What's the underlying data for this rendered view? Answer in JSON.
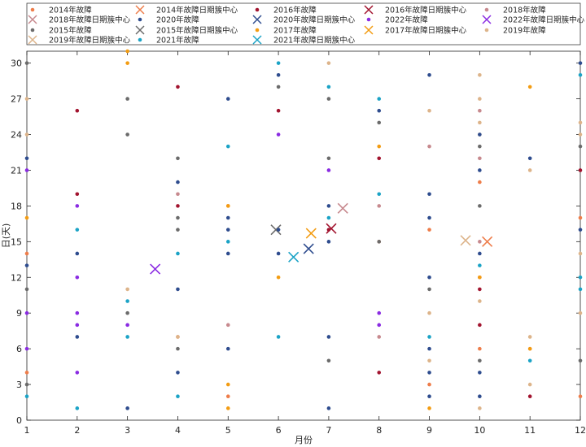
{
  "chart_data": {
    "type": "scatter",
    "xlabel": "月份",
    "ylabel": "日(天)",
    "xlim": [
      1,
      12
    ],
    "ylim": [
      0,
      31
    ],
    "xticks": [
      1,
      2,
      3,
      4,
      5,
      6,
      7,
      8,
      9,
      10,
      11,
      12
    ],
    "yticks": [
      0,
      3,
      6,
      9,
      12,
      15,
      18,
      21,
      24,
      27,
      30
    ],
    "grid": false,
    "legend_position": "top",
    "series": [
      {
        "name": "2014年故障",
        "kind": "points",
        "color": "#EE7D4A",
        "points": [
          [
            1,
            14
          ],
          [
            1,
            4
          ],
          [
            4,
            7
          ],
          [
            5,
            2
          ],
          [
            5,
            18
          ],
          [
            8,
            15
          ],
          [
            9,
            3
          ],
          [
            9,
            16
          ],
          [
            10,
            20
          ],
          [
            10,
            12
          ],
          [
            10,
            6
          ],
          [
            11,
            6
          ],
          [
            12,
            2
          ],
          [
            12,
            17
          ]
        ]
      },
      {
        "name": "2014年故障日期簇中心",
        "kind": "center",
        "color": "#EE7D4A",
        "points": [
          [
            10.15,
            15
          ]
        ]
      },
      {
        "name": "2015年故障",
        "kind": "points",
        "color": "#6B6B6B",
        "points": [
          [
            1,
            30
          ],
          [
            1,
            11
          ],
          [
            1,
            3
          ],
          [
            3,
            27
          ],
          [
            3,
            24
          ],
          [
            3,
            9
          ],
          [
            4,
            22
          ],
          [
            4,
            17
          ],
          [
            4,
            16
          ],
          [
            4,
            6
          ],
          [
            6,
            28
          ],
          [
            7,
            27
          ],
          [
            7,
            22
          ],
          [
            7,
            5
          ],
          [
            8,
            25
          ],
          [
            8,
            15
          ],
          [
            9,
            11
          ],
          [
            10,
            23
          ],
          [
            10,
            18
          ],
          [
            10,
            5
          ],
          [
            12,
            23
          ],
          [
            12,
            5
          ]
        ]
      },
      {
        "name": "2015年故障日期簇中心",
        "kind": "center",
        "color": "#6B6B6B",
        "points": [
          [
            5.95,
            16
          ]
        ]
      },
      {
        "name": "2016年故障",
        "kind": "points",
        "color": "#A2142F",
        "points": [
          [
            2,
            26
          ],
          [
            2,
            19
          ],
          [
            4,
            28
          ],
          [
            4,
            18
          ],
          [
            6,
            26
          ],
          [
            7,
            16
          ],
          [
            8,
            22
          ],
          [
            8,
            4
          ],
          [
            10,
            11
          ],
          [
            10,
            8
          ],
          [
            11,
            2
          ],
          [
            12,
            21
          ]
        ]
      },
      {
        "name": "2016年故障日期簇中心",
        "kind": "center",
        "color": "#A2142F",
        "points": [
          [
            7.05,
            16.1
          ]
        ]
      },
      {
        "name": "2017年故障",
        "kind": "points",
        "color": "#F39C12",
        "points": [
          [
            1,
            17
          ],
          [
            3,
            31
          ],
          [
            3,
            30
          ],
          [
            5,
            18
          ],
          [
            5,
            3
          ],
          [
            5,
            1
          ],
          [
            6,
            12
          ],
          [
            8,
            23
          ],
          [
            9,
            1
          ],
          [
            10,
            12
          ],
          [
            11,
            28
          ],
          [
            11,
            6
          ]
        ]
      },
      {
        "name": "2017年故障日期簇中心",
        "kind": "center",
        "color": "#F39C12",
        "points": [
          [
            6.65,
            15.7
          ]
        ]
      },
      {
        "name": "2018年故障",
        "kind": "points",
        "color": "#C7898E",
        "points": [
          [
            4,
            19
          ],
          [
            5,
            8
          ],
          [
            8,
            18
          ],
          [
            8,
            7
          ],
          [
            9,
            23
          ],
          [
            10,
            26
          ],
          [
            10,
            22
          ],
          [
            10,
            15
          ]
        ]
      },
      {
        "name": "2018年故障日期簇中心",
        "kind": "center",
        "color": "#C7898E",
        "points": [
          [
            7.28,
            17.8
          ]
        ]
      },
      {
        "name": "2019年故障",
        "kind": "points",
        "color": "#DDB48A",
        "points": [
          [
            1,
            27
          ],
          [
            1,
            24
          ],
          [
            3,
            11
          ],
          [
            4,
            7
          ],
          [
            7,
            30
          ],
          [
            9,
            26
          ],
          [
            9,
            9
          ],
          [
            9,
            5
          ],
          [
            10,
            29
          ],
          [
            10,
            27
          ],
          [
            10,
            25
          ],
          [
            10,
            24
          ],
          [
            10,
            10
          ],
          [
            10,
            1
          ],
          [
            11,
            21
          ],
          [
            11,
            7
          ],
          [
            11,
            3
          ],
          [
            12,
            25
          ],
          [
            12,
            24
          ],
          [
            12,
            14
          ],
          [
            12,
            9
          ]
        ]
      },
      {
        "name": "2019年故障日期簇中心",
        "kind": "center",
        "color": "#DDB48A",
        "points": [
          [
            9.72,
            15.1
          ]
        ]
      },
      {
        "name": "2020年故障",
        "kind": "points",
        "color": "#2E4C8E",
        "points": [
          [
            1,
            22
          ],
          [
            1,
            13
          ],
          [
            2,
            14
          ],
          [
            2,
            7
          ],
          [
            3,
            1
          ],
          [
            4,
            20
          ],
          [
            4,
            11
          ],
          [
            4,
            4
          ],
          [
            5,
            27
          ],
          [
            5,
            17
          ],
          [
            5,
            16
          ],
          [
            5,
            14
          ],
          [
            5,
            6
          ],
          [
            6,
            29
          ],
          [
            6,
            16
          ],
          [
            6,
            14
          ],
          [
            7,
            18
          ],
          [
            7,
            15
          ],
          [
            7,
            7
          ],
          [
            7,
            1
          ],
          [
            8,
            26
          ],
          [
            9,
            29
          ],
          [
            9,
            19
          ],
          [
            9,
            17
          ],
          [
            9,
            12
          ],
          [
            9,
            6
          ],
          [
            9,
            4
          ],
          [
            9,
            2
          ],
          [
            10,
            24
          ],
          [
            10,
            21
          ],
          [
            10,
            14
          ],
          [
            10,
            4
          ],
          [
            10,
            2
          ],
          [
            11,
            22
          ],
          [
            12,
            30
          ],
          [
            12,
            16
          ]
        ]
      },
      {
        "name": "2020年故障日期簇中心",
        "kind": "center",
        "color": "#2E4C8E",
        "points": [
          [
            6.6,
            14.4
          ]
        ]
      },
      {
        "name": "2021年故障",
        "kind": "points",
        "color": "#1BA3C6",
        "points": [
          [
            1,
            2
          ],
          [
            2,
            16
          ],
          [
            2,
            1
          ],
          [
            3,
            10
          ],
          [
            3,
            7
          ],
          [
            4,
            14
          ],
          [
            4,
            2
          ],
          [
            5,
            23
          ],
          [
            5,
            15
          ],
          [
            6,
            30
          ],
          [
            6,
            7
          ],
          [
            7,
            28
          ],
          [
            7,
            17
          ],
          [
            8,
            27
          ],
          [
            8,
            19
          ],
          [
            9,
            7
          ],
          [
            10,
            13
          ],
          [
            11,
            5
          ],
          [
            12,
            29
          ],
          [
            12,
            12
          ],
          [
            12,
            11
          ]
        ]
      },
      {
        "name": "2021年故障日期簇中心",
        "kind": "center",
        "color": "#1BA3C6",
        "points": [
          [
            6.3,
            13.7
          ]
        ]
      },
      {
        "name": "2022年故障",
        "kind": "points",
        "color": "#8A2BE2",
        "points": [
          [
            1,
            21
          ],
          [
            1,
            9
          ],
          [
            1,
            6
          ],
          [
            2,
            18
          ],
          [
            2,
            12
          ],
          [
            2,
            9
          ],
          [
            2,
            8
          ],
          [
            2,
            4
          ],
          [
            3,
            8
          ],
          [
            6,
            24
          ],
          [
            7,
            21
          ],
          [
            8,
            9
          ],
          [
            8,
            8
          ]
        ]
      },
      {
        "name": "2022年故障日期簇中心",
        "kind": "center",
        "color": "#8A2BE2",
        "points": [
          [
            3.55,
            12.7
          ]
        ]
      }
    ]
  }
}
